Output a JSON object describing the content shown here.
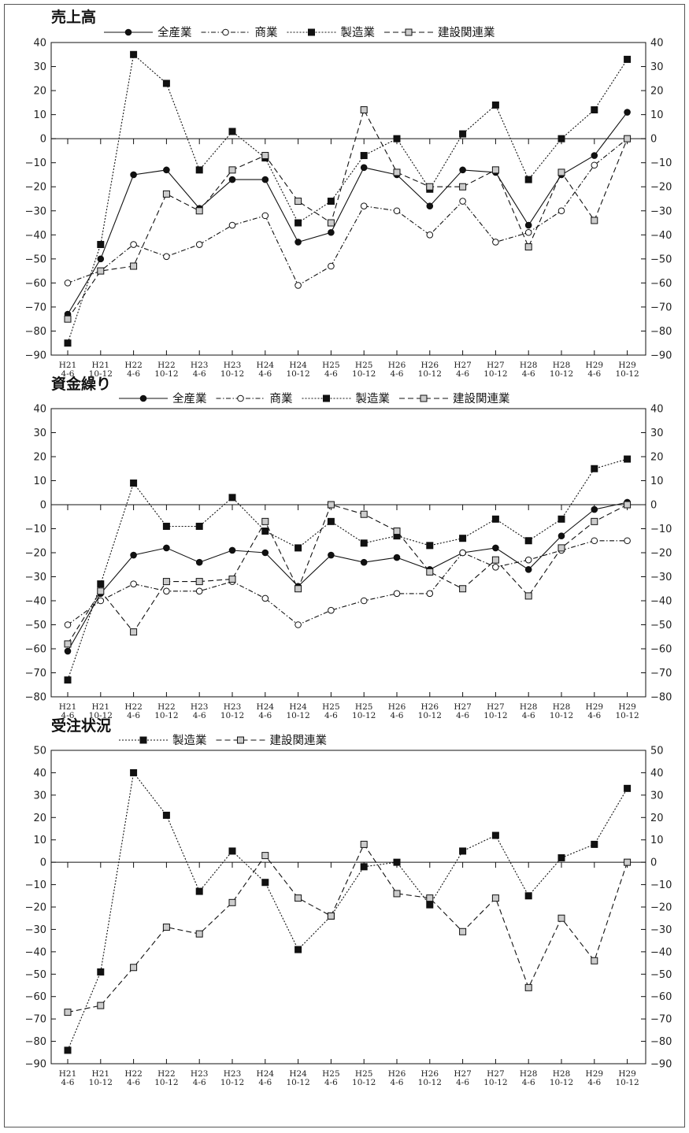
{
  "chart_data": [
    {
      "type": "line",
      "title": "売上高",
      "categories": [
        [
          "H21",
          "4-6"
        ],
        [
          "H21",
          "10-12"
        ],
        [
          "H22",
          "4-6"
        ],
        [
          "H22",
          "10-12"
        ],
        [
          "H23",
          "4-6"
        ],
        [
          "H23",
          "10-12"
        ],
        [
          "H24",
          "4-6"
        ],
        [
          "H24",
          "10-12"
        ],
        [
          "H25",
          "4-6"
        ],
        [
          "H25",
          "10-12"
        ],
        [
          "H26",
          "4-6"
        ],
        [
          "H26",
          "10-12"
        ],
        [
          "H27",
          "4-6"
        ],
        [
          "H27",
          "10-12"
        ],
        [
          "H28",
          "4-6"
        ],
        [
          "H28",
          "10-12"
        ],
        [
          "H29",
          "4-6"
        ],
        [
          "H29",
          "10-12"
        ]
      ],
      "ylim": [
        -90,
        40
      ],
      "yticks": [
        40,
        30,
        20,
        10,
        0,
        -10,
        -20,
        -30,
        -40,
        -50,
        -60,
        -70,
        -80,
        -90
      ],
      "series": [
        {
          "name": "全産業",
          "key": "all",
          "values": [
            -73,
            -50,
            -15,
            -13,
            -29,
            -17,
            -17,
            -43,
            -39,
            -12,
            -15,
            -28,
            -13,
            -14,
            -36,
            -15,
            -7,
            11
          ]
        },
        {
          "name": "商業",
          "key": "commerce",
          "values": [
            -60,
            -55,
            -44,
            -49,
            -44,
            -36,
            -32,
            -61,
            -53,
            -28,
            -30,
            -40,
            -26,
            -43,
            -39,
            -30,
            -11,
            0
          ]
        },
        {
          "name": "製造業",
          "key": "manufacturing",
          "values": [
            -85,
            -44,
            35,
            23,
            -13,
            3,
            -8,
            -35,
            -26,
            -7,
            0,
            -21,
            2,
            14,
            -17,
            0,
            12,
            33
          ]
        },
        {
          "name": "建設関連業",
          "key": "construction",
          "values": [
            -75,
            -55,
            -53,
            -23,
            -30,
            -13,
            -7,
            -26,
            -35,
            12,
            -14,
            -20,
            -20,
            -13,
            -45,
            -14,
            -34,
            0
          ]
        }
      ]
    },
    {
      "type": "line",
      "title": "資金繰り",
      "categories": [
        [
          "H21",
          "4-6"
        ],
        [
          "H21",
          "10-12"
        ],
        [
          "H22",
          "4-6"
        ],
        [
          "H22",
          "10-12"
        ],
        [
          "H23",
          "4-6"
        ],
        [
          "H23",
          "10-12"
        ],
        [
          "H24",
          "4-6"
        ],
        [
          "H24",
          "10-12"
        ],
        [
          "H25",
          "4-6"
        ],
        [
          "H25",
          "10-12"
        ],
        [
          "H26",
          "4-6"
        ],
        [
          "H26",
          "10-12"
        ],
        [
          "H27",
          "4-6"
        ],
        [
          "H27",
          "10-12"
        ],
        [
          "H28",
          "4-6"
        ],
        [
          "H28",
          "10-12"
        ],
        [
          "H29",
          "4-6"
        ],
        [
          "H29",
          "10-12"
        ]
      ],
      "ylim": [
        -80,
        40
      ],
      "yticks": [
        40,
        30,
        20,
        10,
        0,
        -10,
        -20,
        -30,
        -40,
        -50,
        -60,
        -70,
        -80
      ],
      "series": [
        {
          "name": "全産業",
          "key": "all",
          "values": [
            -61,
            -37,
            -21,
            -18,
            -24,
            -19,
            -20,
            -34,
            -21,
            -24,
            -22,
            -27,
            -20,
            -18,
            -27,
            -13,
            -2,
            1
          ]
        },
        {
          "name": "商業",
          "key": "commerce",
          "values": [
            -50,
            -40,
            -33,
            -36,
            -36,
            -32,
            -39,
            -50,
            -44,
            -40,
            -37,
            -37,
            -20,
            -26,
            -23,
            -19,
            -15,
            -15
          ]
        },
        {
          "name": "製造業",
          "key": "manufacturing",
          "values": [
            -73,
            -33,
            9,
            -9,
            -9,
            3,
            -11,
            -18,
            -7,
            -16,
            -13,
            -17,
            -14,
            -6,
            -15,
            -6,
            15,
            19
          ]
        },
        {
          "name": "建設関連業",
          "key": "construction",
          "values": [
            -58,
            -36,
            -53,
            -32,
            -32,
            -31,
            -7,
            -35,
            0,
            -4,
            -11,
            -28,
            -35,
            -23,
            -38,
            -18,
            -7,
            0
          ]
        }
      ]
    },
    {
      "type": "line",
      "title": "受注状況",
      "categories": [
        [
          "H21",
          "4-6"
        ],
        [
          "H21",
          "10-12"
        ],
        [
          "H22",
          "4-6"
        ],
        [
          "H22",
          "10-12"
        ],
        [
          "H23",
          "4-6"
        ],
        [
          "H23",
          "10-12"
        ],
        [
          "H24",
          "4-6"
        ],
        [
          "H24",
          "10-12"
        ],
        [
          "H25",
          "4-6"
        ],
        [
          "H25",
          "10-12"
        ],
        [
          "H26",
          "4-6"
        ],
        [
          "H26",
          "10-12"
        ],
        [
          "H27",
          "4-6"
        ],
        [
          "H27",
          "10-12"
        ],
        [
          "H28",
          "4-6"
        ],
        [
          "H28",
          "10-12"
        ],
        [
          "H29",
          "4-6"
        ],
        [
          "H29",
          "10-12"
        ]
      ],
      "ylim": [
        -90,
        50
      ],
      "yticks": [
        50,
        40,
        30,
        20,
        10,
        0,
        -10,
        -20,
        -30,
        -40,
        -50,
        -60,
        -70,
        -80,
        -90
      ],
      "series": [
        {
          "name": "製造業",
          "key": "manufacturing",
          "values": [
            -84,
            -49,
            40,
            21,
            -13,
            5,
            -9,
            -39,
            -24,
            -2,
            0,
            -19,
            5,
            12,
            -15,
            2,
            8,
            33
          ]
        },
        {
          "name": "建設関連業",
          "key": "construction",
          "values": [
            -67,
            -64,
            -47,
            -29,
            -32,
            -18,
            3,
            -16,
            -24,
            8,
            -14,
            -16,
            -31,
            -16,
            -56,
            -25,
            -44,
            0
          ]
        }
      ]
    }
  ]
}
